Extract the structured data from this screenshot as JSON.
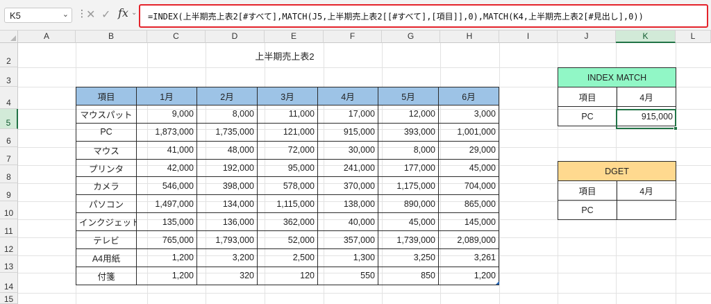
{
  "formula_bar": {
    "name_box": "K5",
    "formula": "=INDEX(上半期売上表2[#すべて],MATCH(J5,上半期売上表2[[#すべて],[項目]],0),MATCH(K4,上半期売上表2[#見出し],0))",
    "fx_label": "fx",
    "icons": [
      "chevron-down-icon",
      "more-vert-icon",
      "cancel-icon",
      "enter-check-icon",
      "function-icon"
    ]
  },
  "grid": {
    "columns": [
      "A",
      "B",
      "C",
      "D",
      "E",
      "F",
      "G",
      "H",
      "I",
      "J",
      "K",
      "L"
    ],
    "rows": [
      "2",
      "3",
      "4",
      "5",
      "6",
      "7",
      "8",
      "9",
      "10",
      "11",
      "12",
      "13",
      "14",
      "15"
    ],
    "selected_column": "K",
    "selected_row": "5",
    "header_color": "#f0f0f0",
    "selection_color": "#217346"
  },
  "sheet_title": "上半期売上表2",
  "main_table": {
    "header_color": "#9dc3e6",
    "headers": [
      "項目",
      "1月",
      "2月",
      "3月",
      "4月",
      "5月",
      "6月"
    ],
    "rows": [
      [
        "マウスパット",
        "9,000",
        "8,000",
        "11,000",
        "17,000",
        "12,000",
        "3,000"
      ],
      [
        "PC",
        "1,873,000",
        "1,735,000",
        "121,000",
        "915,000",
        "393,000",
        "1,001,000"
      ],
      [
        "マウス",
        "41,000",
        "48,000",
        "72,000",
        "30,000",
        "8,000",
        "29,000"
      ],
      [
        "プリンタ",
        "42,000",
        "192,000",
        "95,000",
        "241,000",
        "177,000",
        "45,000"
      ],
      [
        "カメラ",
        "546,000",
        "398,000",
        "578,000",
        "370,000",
        "1,175,000",
        "704,000"
      ],
      [
        "パソコン",
        "1,497,000",
        "134,000",
        "1,115,000",
        "138,000",
        "890,000",
        "865,000"
      ],
      [
        "インクジェット",
        "135,000",
        "136,000",
        "362,000",
        "40,000",
        "45,000",
        "145,000"
      ],
      [
        "テレビ",
        "765,000",
        "1,793,000",
        "52,000",
        "357,000",
        "1,739,000",
        "2,089,000"
      ],
      [
        "A4用紙",
        "1,200",
        "3,200",
        "2,500",
        "1,300",
        "3,250",
        "3,261"
      ],
      [
        "付箋",
        "1,200",
        "320",
        "120",
        "550",
        "850",
        "1,200"
      ]
    ]
  },
  "index_match": {
    "header": "INDEX MATCH",
    "header_color": "#91f7c6",
    "label_item": "項目",
    "label_month": "4月",
    "item": "PC",
    "result": "915,000"
  },
  "dget": {
    "header": "DGET",
    "header_color": "#ffd98f",
    "label_item": "項目",
    "label_month": "4月",
    "item": "PC",
    "result": ""
  }
}
